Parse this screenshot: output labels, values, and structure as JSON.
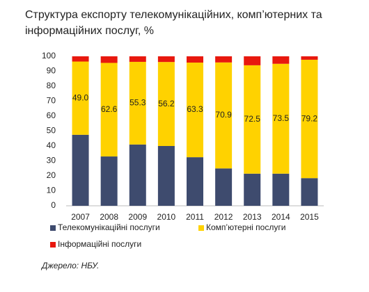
{
  "chart_data": {
    "type": "stacked_bar",
    "title": "Структура експорту телекомунікаційних, комп’ютерних та інформаційних послуг, %",
    "categories": [
      "2007",
      "2008",
      "2009",
      "2010",
      "2011",
      "2012",
      "2013",
      "2014",
      "2015"
    ],
    "series": [
      {
        "name": "Телекомунікаційні послуги",
        "color": "#3e4b6e",
        "values": [
          47.5,
          33,
          41,
          40,
          32.5,
          25,
          21.5,
          21.5,
          18.5
        ]
      },
      {
        "name": "Комп’ютерні послуги",
        "color": "#ffd200",
        "values": [
          49.0,
          62.6,
          55.3,
          56.2,
          63.3,
          70.9,
          72.5,
          73.5,
          79.2
        ],
        "value_labels": [
          "49.0",
          "62.6",
          "55.3",
          "56.2",
          "63.3",
          "70.9",
          "72.5",
          "73.5",
          "79.2"
        ]
      },
      {
        "name": "Інформаційні послуги",
        "color": "#e8180e",
        "values": [
          3.5,
          4.4,
          3.7,
          3.8,
          4.2,
          4.1,
          6.0,
          5.0,
          2.3
        ]
      }
    ],
    "ylim": [
      0,
      100
    ],
    "yticks": [
      0,
      10,
      20,
      30,
      40,
      50,
      60,
      70,
      80,
      90,
      100
    ],
    "source": "Джерело: НБУ."
  }
}
